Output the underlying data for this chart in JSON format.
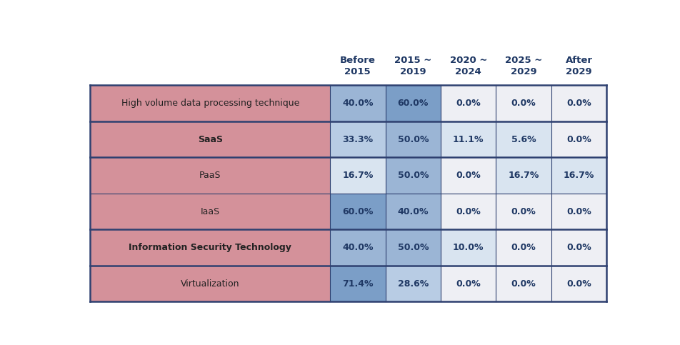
{
  "col_headers": [
    "Before\n2015",
    "2015 ~\n2019",
    "2020 ~\n2024",
    "2025 ~\n2029",
    "After\n2029"
  ],
  "rows": [
    {
      "label": "High volume data processing technique",
      "values": [
        40.0,
        60.0,
        0.0,
        0.0,
        0.0
      ],
      "bold_label": false,
      "group": 0
    },
    {
      "label": "SaaS",
      "values": [
        33.3,
        50.0,
        11.1,
        5.6,
        0.0
      ],
      "bold_label": true,
      "group": 1
    },
    {
      "label": "PaaS",
      "values": [
        16.7,
        50.0,
        0.0,
        16.7,
        16.7
      ],
      "bold_label": false,
      "group": 2
    },
    {
      "label": "IaaS",
      "values": [
        60.0,
        40.0,
        0.0,
        0.0,
        0.0
      ],
      "bold_label": false,
      "group": 2
    },
    {
      "label": "Information Security Technology",
      "values": [
        40.0,
        50.0,
        10.0,
        0.0,
        0.0
      ],
      "bold_label": true,
      "group": 3
    },
    {
      "label": "Virtualization",
      "values": [
        71.4,
        28.6,
        0.0,
        0.0,
        0.0
      ],
      "bold_label": false,
      "group": 4
    }
  ],
  "col_header_color": "#1F3864",
  "col_header_fontsize": 9.5,
  "cell_fontsize": 9.0,
  "label_fontsize": 9.0,
  "row_label_bg": "#D4919A",
  "colors": {
    "c1": "#7B9EC7",
    "c2": "#9BB5D5",
    "c3": "#B8CCE4",
    "c4": "#D9E4F0",
    "c5": "#EEEFF4"
  },
  "border_color": "#2E4070",
  "thick_lw": 1.8,
  "thin_lw": 0.8
}
